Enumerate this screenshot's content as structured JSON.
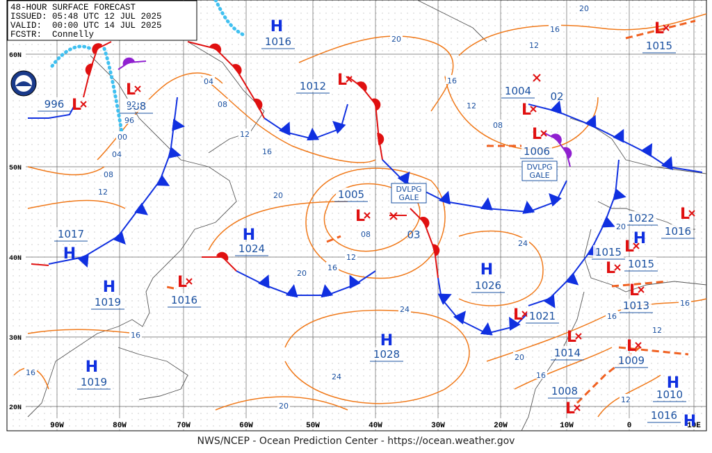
{
  "header": {
    "lines": [
      "48-HOUR SURFACE FORECAST",
      "ISSUED: 05:48 UTC 12 JUL 2025",
      "VALID:  00:00 UTC 14 JUL 2025",
      "FCSTR:  Connelly"
    ]
  },
  "footer": "NWS/NCEP - Ocean Prediction Center - https://ocean.weather.gov",
  "lat_labels": [
    "60N",
    "50N",
    "40N",
    "30N",
    "20N"
  ],
  "lon_labels": [
    "90W",
    "80W",
    "70W",
    "60W",
    "50W",
    "40W",
    "30W",
    "20W",
    "10W",
    "0",
    "10E"
  ],
  "centers": [
    {
      "letter": "H",
      "pressure": 1016
    },
    {
      "letter": "L",
      "pressure": 1012
    },
    {
      "letter": "L",
      "pressure": 996
    },
    {
      "letter": "L",
      "pressure": 988
    },
    {
      "letter": "H",
      "pressure": 1017
    },
    {
      "letter": "H",
      "pressure": 1019
    },
    {
      "letter": "L",
      "pressure": 1016
    },
    {
      "letter": "H",
      "pressure": 1024
    },
    {
      "letter": "L",
      "pressure": 1005
    },
    {
      "letter": "H",
      "pressure": 1019
    },
    {
      "letter": "H",
      "pressure": 1028
    },
    {
      "letter": "H",
      "pressure": 1026
    },
    {
      "letter": "L",
      "pressure": 1004
    },
    {
      "letter": "L",
      "pressure": 1006
    },
    {
      "letter": "L",
      "pressure": 1015
    },
    {
      "letter": "H",
      "pressure": 1022
    },
    {
      "letter": "L",
      "pressure": 1016
    },
    {
      "letter": "L",
      "pressure": 1015
    },
    {
      "letter": "L",
      "pressure": 1015
    },
    {
      "letter": "L",
      "pressure": 1013
    },
    {
      "letter": "L",
      "pressure": 1021
    },
    {
      "letter": "L",
      "pressure": 1014
    },
    {
      "letter": "L",
      "pressure": 1009
    },
    {
      "letter": "L",
      "pressure": 1008
    },
    {
      "letter": "H",
      "pressure": 1010
    },
    {
      "letter": "H",
      "pressure": 1016
    }
  ],
  "forecast_pressures": [
    "02",
    "03"
  ],
  "isobar_labels": [
    "20",
    "20",
    "16",
    "12",
    "16",
    "12",
    "08",
    "04",
    "08",
    "12",
    "16",
    "20",
    "08",
    "12",
    "04",
    "00",
    "96",
    "92",
    "08",
    "12",
    "16",
    "20",
    "24",
    "24",
    "24",
    "20",
    "16",
    "16",
    "20",
    "16",
    "12",
    "16",
    "12",
    "16",
    "20"
  ],
  "gale_warnings": [
    {
      "lines": [
        "DVLPG",
        "GALE"
      ]
    },
    {
      "lines": [
        "DVLPG",
        "GALE"
      ]
    }
  ]
}
